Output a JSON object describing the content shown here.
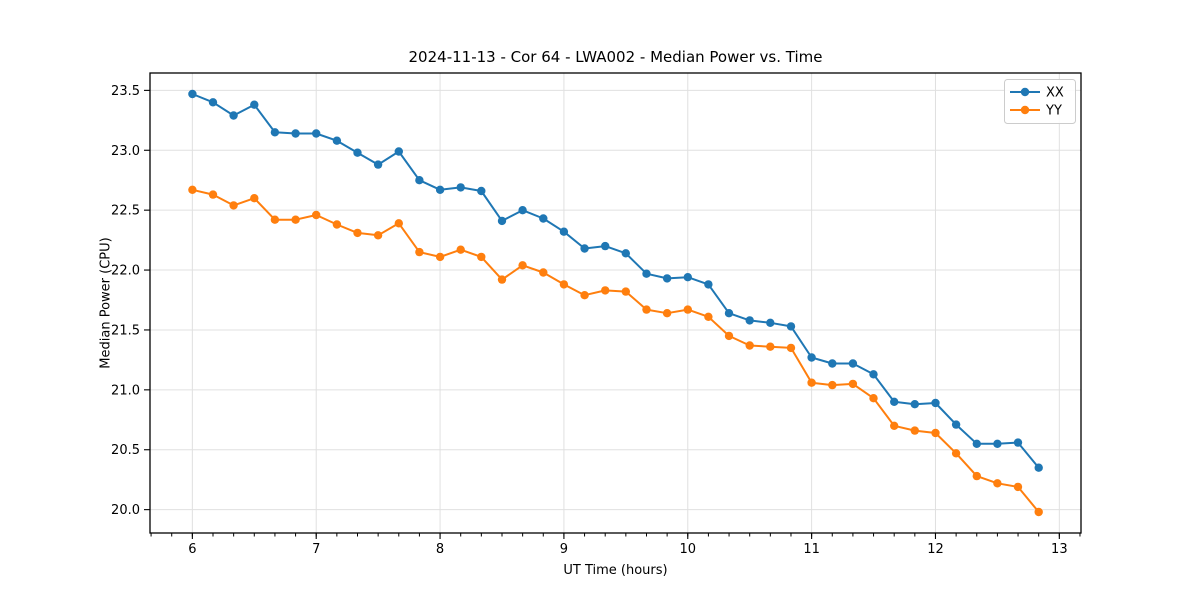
{
  "chart_data": {
    "type": "line",
    "title": "2024-11-13 - Cor 64 - LWA002 - Median Power vs. Time",
    "xlabel": "UT Time (hours)",
    "ylabel": "Median Power (CPU)",
    "xlim": [
      5.658,
      13.175
    ],
    "ylim": [
      19.805,
      23.645
    ],
    "xticks": [
      6,
      7,
      8,
      9,
      10,
      11,
      12,
      13
    ],
    "xtick_labels": [
      "6",
      "7",
      "8",
      "9",
      "10",
      "11",
      "12",
      "13"
    ],
    "yticks": [
      20.0,
      20.5,
      21.0,
      21.5,
      22.0,
      22.5,
      23.0,
      23.5
    ],
    "ytick_labels": [
      "20.0",
      "20.5",
      "21.0",
      "21.5",
      "22.0",
      "22.5",
      "23.0",
      "23.5"
    ],
    "minor_xtick_step": 0.166667,
    "grid": true,
    "grid_color": "#e0e0e0",
    "background": "#ffffff",
    "legend_position": "upper right",
    "x": [
      6.0,
      6.1667,
      6.3333,
      6.5,
      6.6667,
      6.8333,
      7.0,
      7.1667,
      7.3333,
      7.5,
      7.6667,
      7.8333,
      8.0,
      8.1667,
      8.3333,
      8.5,
      8.6667,
      8.8333,
      9.0,
      9.1667,
      9.3333,
      9.5,
      9.6667,
      9.8333,
      10.0,
      10.1667,
      10.3333,
      10.5,
      10.6667,
      10.8333,
      11.0,
      11.1667,
      11.3333,
      11.5,
      11.6667,
      11.8333,
      12.0,
      12.1667,
      12.3333,
      12.5,
      12.6667,
      12.8333
    ],
    "series": [
      {
        "name": "XX",
        "color": "#1f77b4",
        "values": [
          23.47,
          23.4,
          23.29,
          23.38,
          23.15,
          23.14,
          23.14,
          23.08,
          22.98,
          22.88,
          22.99,
          22.75,
          22.67,
          22.69,
          22.66,
          22.41,
          22.5,
          22.43,
          22.32,
          22.18,
          22.2,
          22.14,
          21.97,
          21.93,
          21.94,
          21.88,
          21.64,
          21.58,
          21.56,
          21.53,
          21.27,
          21.22,
          21.22,
          21.13,
          20.9,
          20.88,
          20.89,
          20.71,
          20.55,
          20.55,
          20.56,
          20.35
        ]
      },
      {
        "name": "YY",
        "color": "#ff7f0e",
        "values": [
          22.67,
          22.63,
          22.54,
          22.6,
          22.42,
          22.42,
          22.46,
          22.38,
          22.31,
          22.29,
          22.39,
          22.15,
          22.11,
          22.17,
          22.11,
          21.92,
          22.04,
          21.98,
          21.88,
          21.79,
          21.83,
          21.82,
          21.67,
          21.64,
          21.67,
          21.61,
          21.45,
          21.37,
          21.36,
          21.35,
          21.06,
          21.04,
          21.05,
          20.93,
          20.7,
          20.66,
          20.64,
          20.47,
          20.28,
          20.22,
          20.19,
          19.98
        ]
      }
    ]
  }
}
